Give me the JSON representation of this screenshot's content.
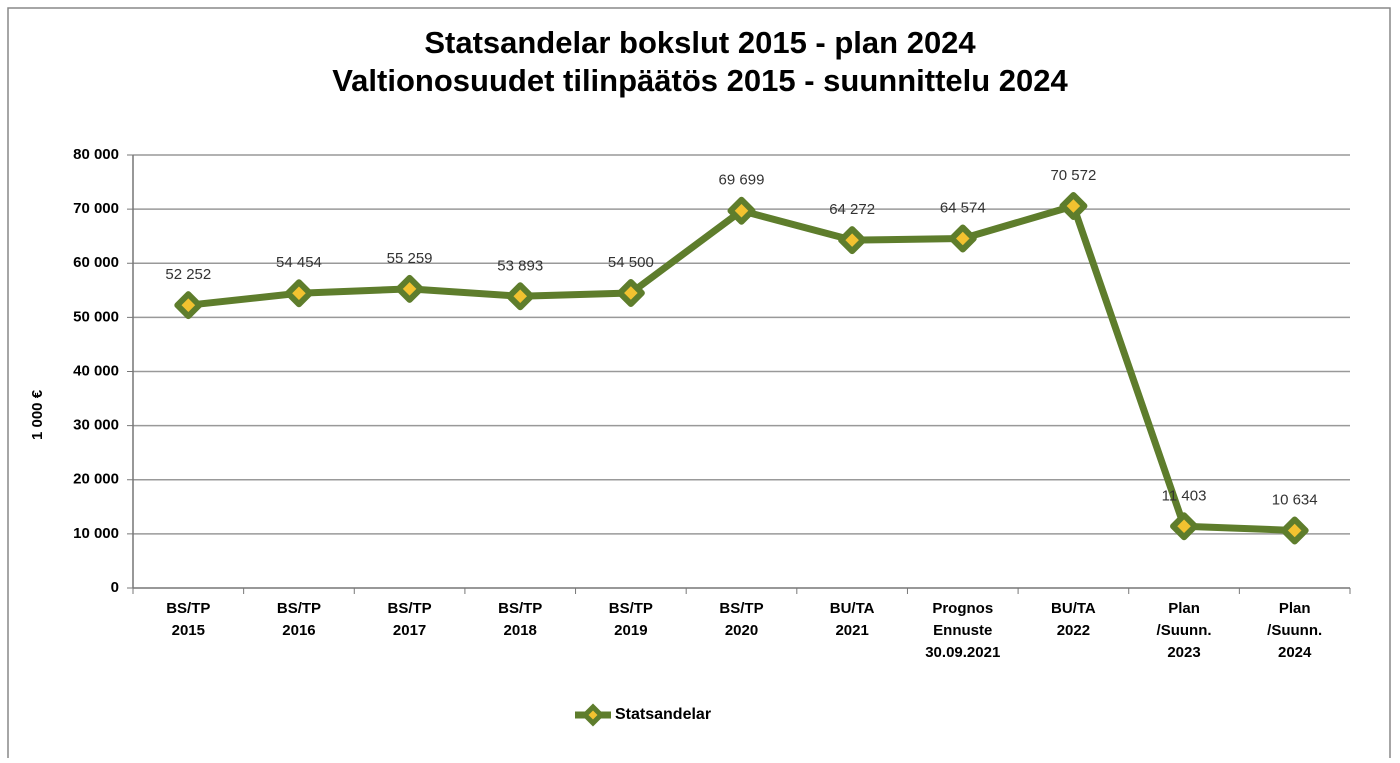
{
  "chart_data": {
    "type": "line",
    "title": [
      "Statsandelar  bokslut  2015 - plan 2024",
      "Valtionosuudet  tilinpäätös  2015 - suunnittelu 2024"
    ],
    "y_label": "1 000 €",
    "categories": [
      [
        "BS/TP",
        "2015"
      ],
      [
        "BS/TP",
        "2016"
      ],
      [
        "BS/TP",
        "2017"
      ],
      [
        "BS/TP",
        "2018"
      ],
      [
        "BS/TP",
        "2019"
      ],
      [
        "BS/TP",
        "2020"
      ],
      [
        "BU/TA",
        "2021"
      ],
      [
        "Prognos",
        "Ennuste",
        "30.09.2021"
      ],
      [
        "BU/TA",
        "2022"
      ],
      [
        "Plan",
        "/Suunn.",
        "2023"
      ],
      [
        "Plan",
        "/Suunn.",
        "2024"
      ]
    ],
    "series": [
      {
        "name": "Statsandelar",
        "color": "#5e7d2c",
        "marker_color": "#f2c230",
        "values": [
          52252,
          54454,
          55259,
          53893,
          54500,
          69699,
          64272,
          64574,
          70572,
          11403,
          10634
        ],
        "value_labels": [
          "52 252",
          "54 454",
          "55 259",
          "53 893",
          "54 500",
          "69 699",
          "64 272",
          "64 574",
          "70 572",
          "11 403",
          "10 634"
        ]
      }
    ],
    "ylim": [
      0,
      80000
    ],
    "yticks": [
      0,
      {
        "value": 10000,
        "label": "10 000"
      },
      {
        "value": 20000,
        "label": "20 000"
      },
      {
        "value": 30000,
        "label": "30 000"
      },
      {
        "value": 40000,
        "label": "40 000"
      },
      {
        "value": 50000,
        "label": "50 000"
      },
      {
        "value": 60000,
        "label": "60 000"
      },
      {
        "value": 70000,
        "label": "70 000"
      },
      {
        "value": 80000,
        "label": "80 000"
      }
    ],
    "grid": true,
    "legend": "bottom"
  }
}
